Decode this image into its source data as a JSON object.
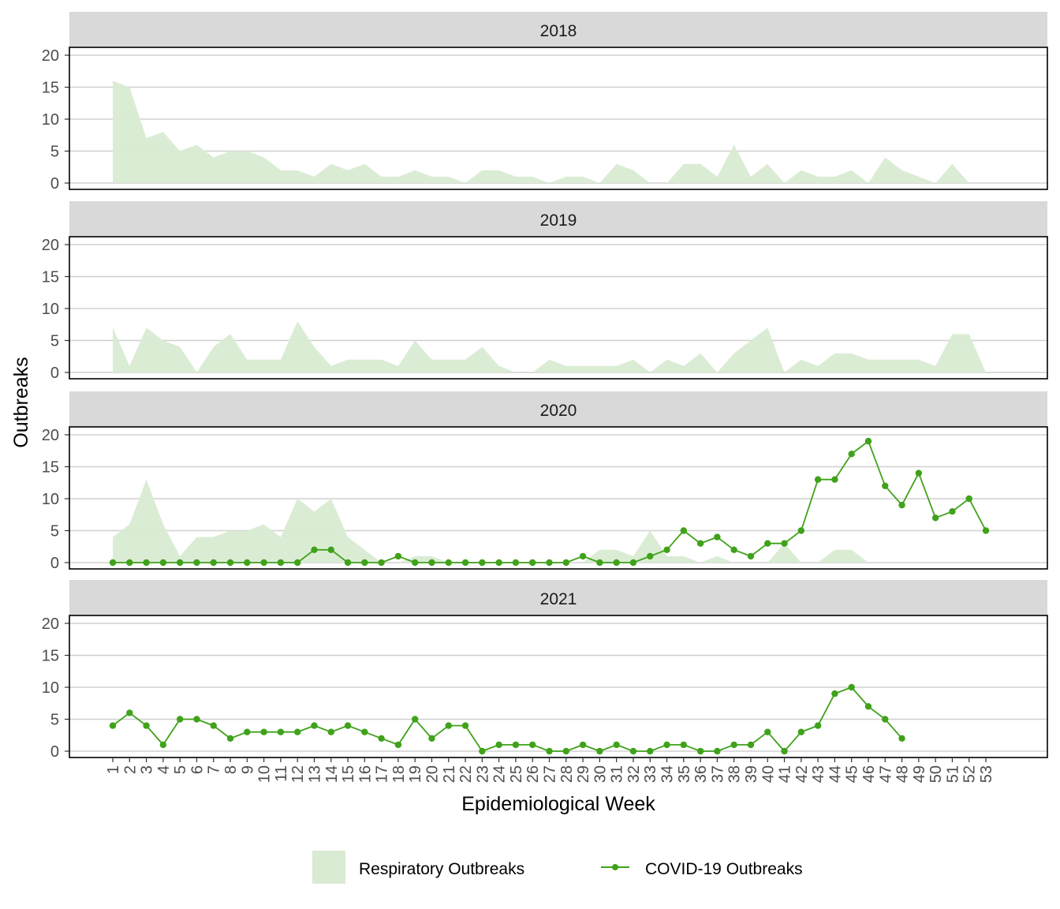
{
  "chart_data": {
    "type": "area",
    "xlabel": "Epidemiological Week",
    "ylabel": "Outbreaks",
    "ylim": [
      0,
      20
    ],
    "yticks": [
      0,
      5,
      10,
      15,
      20
    ],
    "x": [
      1,
      2,
      3,
      4,
      5,
      6,
      7,
      8,
      9,
      10,
      11,
      12,
      13,
      14,
      15,
      16,
      17,
      18,
      19,
      20,
      21,
      22,
      23,
      24,
      25,
      26,
      27,
      28,
      29,
      30,
      31,
      32,
      33,
      34,
      35,
      36,
      37,
      38,
      39,
      40,
      41,
      42,
      43,
      44,
      45,
      46,
      47,
      48,
      49,
      50,
      51,
      52,
      53
    ],
    "grid": true,
    "legend_position": "bottom",
    "colors": {
      "respiratory": "#d9ebd3",
      "covid": "#3fa21a",
      "strip": "#d9d9d9",
      "grid": "#d0d0d0"
    },
    "legend": {
      "respiratory": "Respiratory Outbreaks",
      "covid": "COVID-19 Outbreaks"
    },
    "panels": [
      {
        "title": "2018",
        "respiratory": [
          16,
          15,
          7,
          8,
          5,
          6,
          4,
          5,
          5,
          4,
          2,
          2,
          1,
          3,
          2,
          3,
          1,
          1,
          2,
          1,
          1,
          0,
          2,
          2,
          1,
          1,
          0,
          1,
          1,
          0,
          3,
          2,
          0,
          0,
          3,
          3,
          1,
          6,
          1,
          3,
          0,
          2,
          1,
          1,
          2,
          0,
          4,
          2,
          1,
          0,
          3,
          0
        ],
        "covid": []
      },
      {
        "title": "2019",
        "respiratory": [
          7,
          1,
          7,
          5,
          4,
          0,
          4,
          6,
          2,
          2,
          2,
          8,
          4,
          1,
          2,
          2,
          2,
          1,
          5,
          2,
          2,
          2,
          4,
          1,
          0,
          0,
          2,
          1,
          1,
          1,
          1,
          2,
          0,
          2,
          1,
          3,
          0,
          3,
          5,
          7,
          0,
          2,
          1,
          3,
          3,
          2,
          2,
          2,
          2,
          1,
          6,
          6,
          0
        ],
        "covid": []
      },
      {
        "title": "2020",
        "respiratory": [
          4,
          6,
          13,
          6,
          1,
          4,
          4,
          5,
          5,
          6,
          4,
          10,
          8,
          10,
          4,
          2,
          0,
          0,
          1,
          1,
          0,
          0,
          0,
          0,
          0,
          0,
          0,
          0,
          0,
          2,
          2,
          1,
          5,
          1,
          1,
          0,
          1,
          0,
          0,
          0,
          3,
          0,
          0,
          2,
          2,
          0
        ],
        "covid": [
          0,
          0,
          0,
          0,
          0,
          0,
          0,
          0,
          0,
          0,
          0,
          0,
          2,
          2,
          0,
          0,
          0,
          1,
          0,
          0,
          0,
          0,
          0,
          0,
          0,
          0,
          0,
          0,
          1,
          0,
          0,
          0,
          1,
          2,
          5,
          3,
          4,
          2,
          1,
          3,
          3,
          5,
          13,
          13,
          17,
          19,
          12,
          9,
          14,
          7,
          8,
          10,
          5
        ]
      },
      {
        "title": "2021",
        "respiratory": [],
        "covid": [
          4,
          6,
          4,
          1,
          5,
          5,
          4,
          2,
          3,
          3,
          3,
          3,
          4,
          3,
          4,
          3,
          2,
          1,
          5,
          2,
          4,
          4,
          0,
          1,
          1,
          1,
          0,
          0,
          1,
          0,
          1,
          0,
          0,
          1,
          1,
          0,
          0,
          1,
          1,
          3,
          0,
          3,
          4,
          9,
          10,
          7,
          5,
          2
        ]
      }
    ]
  }
}
